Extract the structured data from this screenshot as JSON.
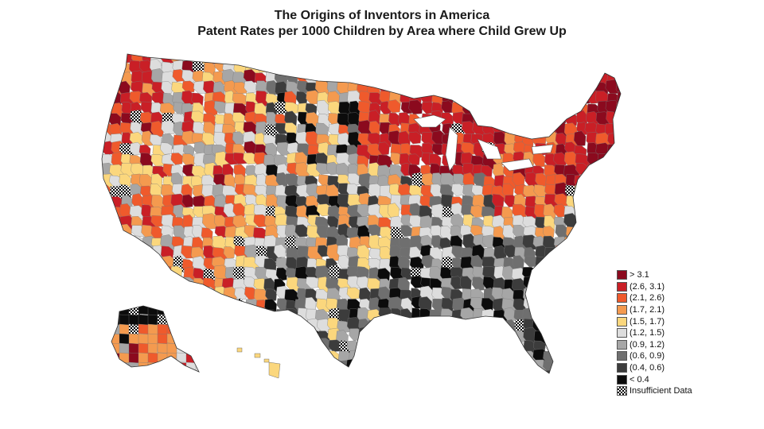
{
  "title": {
    "line1": "The Origins of Inventors in America",
    "line2": "Patent Rates per 1000 Children by Area where Child Grew Up"
  },
  "legend": {
    "items": [
      {
        "label": "> 3.1",
        "color": "#8b0a1e"
      },
      {
        "label": "(2.6, 3.1)",
        "color": "#c91f26"
      },
      {
        "label": "(2.1, 2.6)",
        "color": "#ef5a2c"
      },
      {
        "label": "(1.7, 2.1)",
        "color": "#f49a4f"
      },
      {
        "label": "(1.5, 1.7)",
        "color": "#fbd77d"
      },
      {
        "label": "(1.2, 1.5)",
        "color": "#dddddd"
      },
      {
        "label": "(0.9, 1.2)",
        "color": "#a6a6a6"
      },
      {
        "label": "(0.6, 0.9)",
        "color": "#6f6f6f"
      },
      {
        "label": "(0.4, 0.6)",
        "color": "#3c3c3c"
      },
      {
        "label": "< 0.4",
        "color": "#0c0c0c"
      },
      {
        "label": "Insufficient Data",
        "color": "hatch"
      }
    ]
  },
  "map": {
    "regions": [
      "Contiguous United States",
      "Alaska",
      "Hawaii"
    ]
  }
}
